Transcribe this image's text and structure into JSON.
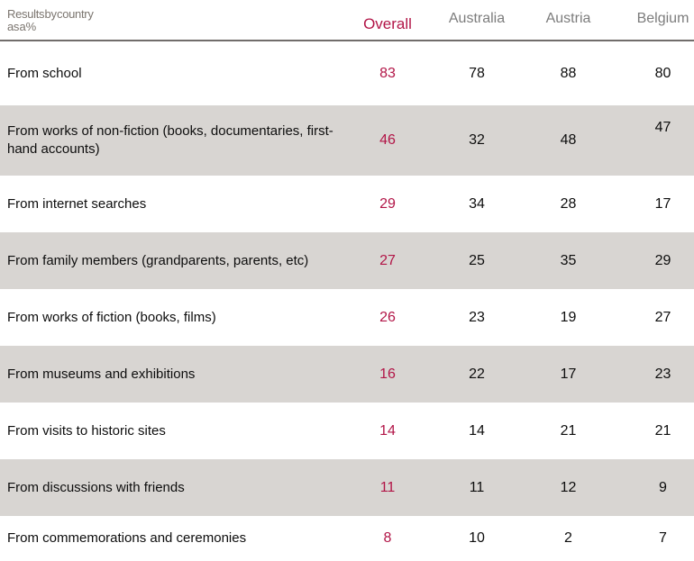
{
  "header": {
    "title_line1": "Results by country",
    "title_line2": "as a %"
  },
  "colors": {
    "accent_red": "#b21547",
    "alt_row_gray": "#d8d5d2",
    "header_text_gray": "#7c7c7c",
    "corner_text_gray": "#7b756f",
    "header_rule_gray": "#716d6b",
    "body_text": "#0d0d0d"
  },
  "chart_data": {
    "type": "table",
    "title": "Results by country as a %",
    "categories": [
      "From school",
      "From works of non-fiction (books, documentaries, first-hand accounts)",
      "From internet searches",
      "From family members (grandparents, parents, etc)",
      "From works of fiction (books, films)",
      "From museums and exhibitions",
      "From visits to historic sites",
      "From discussions with friends",
      "From commemorations and ceremonies"
    ],
    "series": [
      {
        "name": "Overall",
        "values": [
          83,
          46,
          29,
          27,
          26,
          16,
          14,
          11,
          8
        ]
      },
      {
        "name": "Australia",
        "values": [
          78,
          32,
          34,
          25,
          23,
          22,
          14,
          11,
          10
        ]
      },
      {
        "name": "Austria",
        "values": [
          88,
          48,
          28,
          35,
          19,
          17,
          21,
          12,
          2
        ]
      },
      {
        "name": "Belgium",
        "values": [
          80,
          47,
          17,
          29,
          27,
          23,
          21,
          9,
          7
        ]
      }
    ],
    "layout": {
      "value_unit": "percent",
      "alternating_row_shading": true,
      "highlight_column": "Overall"
    }
  }
}
